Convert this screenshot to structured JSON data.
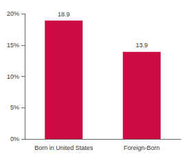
{
  "chart_data": {
    "type": "bar",
    "categories": [
      "Born in United States",
      "Foreign-Born"
    ],
    "values": [
      18.9,
      13.9
    ],
    "color": "#cc0a44",
    "ylim": [
      0,
      20
    ],
    "yticks": [
      {
        "value": 0,
        "label": "0%"
      },
      {
        "value": 5,
        "label": "5%"
      },
      {
        "value": 10,
        "label": "10%"
      },
      {
        "value": 15,
        "label": "15%"
      },
      {
        "value": 20,
        "label": "20%"
      }
    ],
    "grid": false,
    "data_labels": true
  }
}
